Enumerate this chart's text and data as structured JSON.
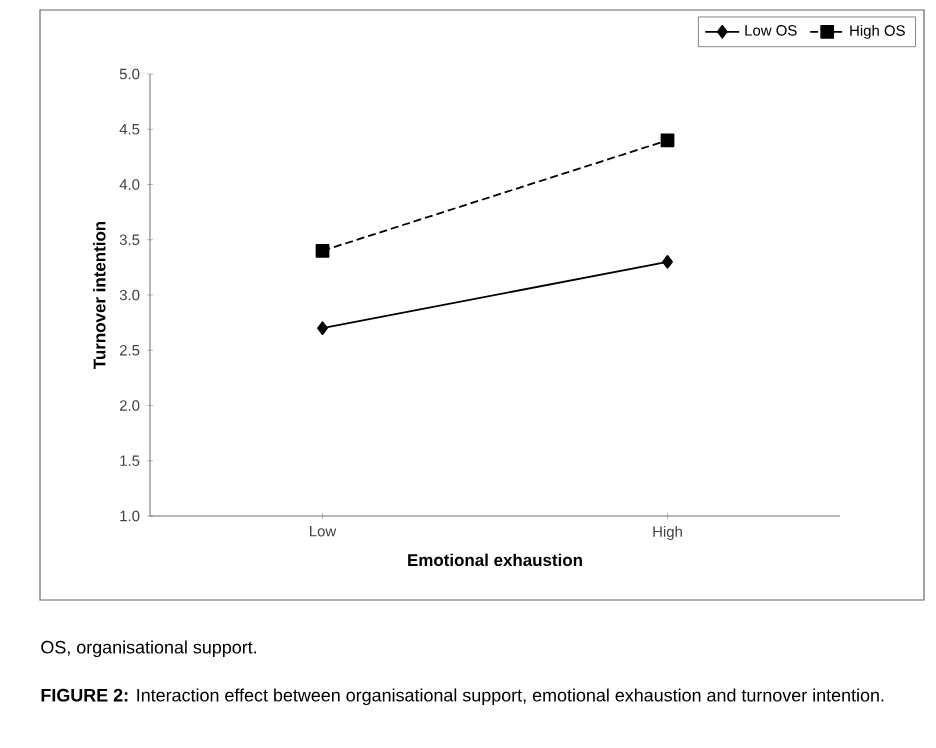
{
  "chart_data": {
    "type": "line",
    "xlabel": "Emotional exhaustion",
    "ylabel": "Turnover intention",
    "categories": [
      "Low",
      "High"
    ],
    "series": [
      {
        "name": "Low OS",
        "color": "#000000",
        "values": [
          2.7,
          3.3
        ],
        "marker": "diamond",
        "line_style": "solid"
      },
      {
        "name": "High OS",
        "color": "#000000",
        "values": [
          3.4,
          4.4
        ],
        "marker": "square",
        "line_style": "dashed"
      }
    ],
    "ylim": [
      1.0,
      5.0
    ],
    "yticks": [
      {
        "value": 1.0,
        "label": "1.0"
      },
      {
        "value": 1.5,
        "label": "1.5"
      },
      {
        "value": 2.0,
        "label": "2.0"
      },
      {
        "value": 2.5,
        "label": "2.5"
      },
      {
        "value": 3.0,
        "label": "3.0"
      },
      {
        "value": 3.5,
        "label": "3.5"
      },
      {
        "value": 4.0,
        "label": "4.0"
      },
      {
        "value": 4.5,
        "label": "4.5"
      },
      {
        "value": 5.0,
        "label": "5.0"
      }
    ],
    "grid": false,
    "legend": "top right",
    "annotations": [
      "OS, organisational support.",
      "**FIGURE 2:** Interaction effect between organisational support, emotional exhaustion and turnover intention."
    ]
  }
}
